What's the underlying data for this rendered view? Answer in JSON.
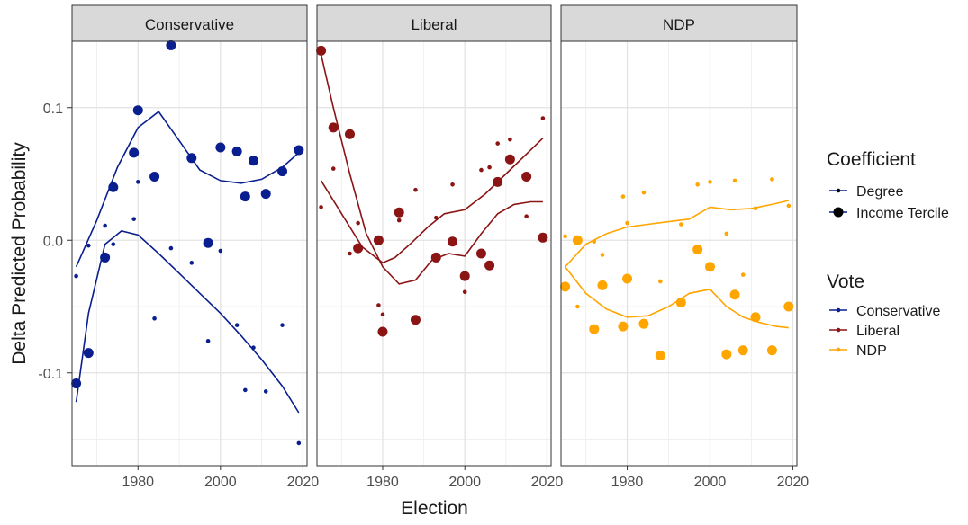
{
  "chart_data": {
    "type": "scatter",
    "xlabel": "Election",
    "ylabel": "Delta Predicted Probability",
    "xlim": [
      1964,
      2021
    ],
    "ylim": [
      -0.17,
      0.15
    ],
    "xticks": [
      1980,
      2000,
      2020
    ],
    "yticks": [
      -0.1,
      0.0,
      0.1
    ],
    "ytick_labels": [
      "-0.1",
      "0.0",
      "0.1"
    ],
    "grid": true,
    "colors": {
      "Conservative": "#0a1f8f",
      "Liberal": "#8b1414",
      "NDP": "#ffa500"
    },
    "legend": {
      "coefficient_title": "Coefficient",
      "coefficient_items": [
        "Degree",
        "Income Tercile"
      ],
      "vote_title": "Vote",
      "vote_items": [
        "Conservative",
        "Liberal",
        "NDP"
      ]
    },
    "facets": [
      {
        "name": "Conservative",
        "color": "#0a1f8f",
        "series": [
          {
            "name": "Degree",
            "points": [
              [
                1965,
                -0.027
              ],
              [
                1968,
                -0.004
              ],
              [
                1972,
                0.011
              ],
              [
                1974,
                -0.003
              ],
              [
                1979,
                0.016
              ],
              [
                1980,
                0.044
              ],
              [
                1984,
                -0.059
              ],
              [
                1988,
                -0.006
              ],
              [
                1993,
                -0.017
              ],
              [
                1997,
                -0.076
              ],
              [
                2000,
                -0.008
              ],
              [
                2004,
                -0.064
              ],
              [
                2006,
                -0.113
              ],
              [
                2008,
                -0.081
              ],
              [
                2011,
                -0.114
              ],
              [
                2015,
                -0.064
              ],
              [
                2019,
                -0.153
              ]
            ],
            "smooth": [
              [
                1965,
                -0.122
              ],
              [
                1968,
                -0.055
              ],
              [
                1972,
                -0.003
              ],
              [
                1976,
                0.007
              ],
              [
                1980,
                0.004
              ],
              [
                1985,
                -0.01
              ],
              [
                1990,
                -0.025
              ],
              [
                1995,
                -0.04
              ],
              [
                2000,
                -0.055
              ],
              [
                2005,
                -0.072
              ],
              [
                2010,
                -0.09
              ],
              [
                2015,
                -0.11
              ],
              [
                2019,
                -0.13
              ]
            ]
          },
          {
            "name": "Income Tercile",
            "points": [
              [
                1965,
                -0.108
              ],
              [
                1968,
                -0.085
              ],
              [
                1972,
                -0.013
              ],
              [
                1974,
                0.04
              ],
              [
                1979,
                0.066
              ],
              [
                1980,
                0.098
              ],
              [
                1984,
                0.048
              ],
              [
                1988,
                0.147
              ],
              [
                1993,
                0.062
              ],
              [
                1997,
                -0.002
              ],
              [
                2000,
                0.07
              ],
              [
                2004,
                0.067
              ],
              [
                2006,
                0.033
              ],
              [
                2008,
                0.06
              ],
              [
                2011,
                0.035
              ],
              [
                2015,
                0.052
              ],
              [
                2019,
                0.068
              ]
            ],
            "smooth": [
              [
                1965,
                -0.02
              ],
              [
                1970,
                0.015
              ],
              [
                1975,
                0.055
              ],
              [
                1980,
                0.085
              ],
              [
                1985,
                0.097
              ],
              [
                1990,
                0.075
              ],
              [
                1995,
                0.053
              ],
              [
                2000,
                0.045
              ],
              [
                2005,
                0.043
              ],
              [
                2010,
                0.046
              ],
              [
                2015,
                0.055
              ],
              [
                2019,
                0.066
              ]
            ]
          }
        ]
      },
      {
        "name": "Liberal",
        "color": "#8b1414",
        "series": [
          {
            "name": "Degree",
            "points": [
              [
                1965,
                0.025
              ],
              [
                1968,
                0.054
              ],
              [
                1972,
                -0.01
              ],
              [
                1974,
                0.013
              ],
              [
                1979,
                -0.049
              ],
              [
                1980,
                -0.056
              ],
              [
                1984,
                0.015
              ],
              [
                1988,
                0.038
              ],
              [
                1993,
                0.017
              ],
              [
                1997,
                0.042
              ],
              [
                2000,
                -0.039
              ],
              [
                2004,
                0.053
              ],
              [
                2006,
                0.055
              ],
              [
                2008,
                0.073
              ],
              [
                2011,
                0.076
              ],
              [
                2015,
                0.018
              ],
              [
                2019,
                0.092
              ]
            ],
            "smooth": [
              [
                1965,
                0.045
              ],
              [
                1970,
                0.02
              ],
              [
                1975,
                -0.005
              ],
              [
                1980,
                -0.017
              ],
              [
                1983,
                -0.013
              ],
              [
                1987,
                -0.002
              ],
              [
                1991,
                0.01
              ],
              [
                1995,
                0.02
              ],
              [
                2000,
                0.023
              ],
              [
                2005,
                0.035
              ],
              [
                2010,
                0.05
              ],
              [
                2015,
                0.065
              ],
              [
                2019,
                0.077
              ]
            ]
          },
          {
            "name": "Income Tercile",
            "points": [
              [
                1965,
                0.143
              ],
              [
                1968,
                0.085
              ],
              [
                1972,
                0.08
              ],
              [
                1974,
                -0.006
              ],
              [
                1979,
                0.0
              ],
              [
                1980,
                -0.069
              ],
              [
                1984,
                0.021
              ],
              [
                1988,
                -0.06
              ],
              [
                1993,
                -0.013
              ],
              [
                1997,
                -0.001
              ],
              [
                2000,
                -0.027
              ],
              [
                2004,
                -0.01
              ],
              [
                2006,
                -0.019
              ],
              [
                2008,
                0.044
              ],
              [
                2011,
                0.061
              ],
              [
                2015,
                0.048
              ],
              [
                2019,
                0.002
              ]
            ],
            "smooth": [
              [
                1965,
                0.14
              ],
              [
                1968,
                0.1
              ],
              [
                1972,
                0.05
              ],
              [
                1976,
                0.005
              ],
              [
                1980,
                -0.02
              ],
              [
                1984,
                -0.033
              ],
              [
                1988,
                -0.03
              ],
              [
                1992,
                -0.015
              ],
              [
                1996,
                -0.01
              ],
              [
                2000,
                -0.012
              ],
              [
                2004,
                0.005
              ],
              [
                2008,
                0.02
              ],
              [
                2012,
                0.027
              ],
              [
                2016,
                0.029
              ],
              [
                2019,
                0.029
              ]
            ]
          }
        ]
      },
      {
        "name": "NDP",
        "color": "#ffa500",
        "series": [
          {
            "name": "Degree",
            "points": [
              [
                1965,
                0.003
              ],
              [
                1968,
                -0.05
              ],
              [
                1972,
                -0.001
              ],
              [
                1974,
                -0.011
              ],
              [
                1979,
                0.033
              ],
              [
                1980,
                0.013
              ],
              [
                1984,
                0.036
              ],
              [
                1988,
                -0.031
              ],
              [
                1993,
                0.012
              ],
              [
                1997,
                0.042
              ],
              [
                2000,
                0.044
              ],
              [
                2004,
                0.005
              ],
              [
                2006,
                0.045
              ],
              [
                2008,
                -0.026
              ],
              [
                2011,
                0.024
              ],
              [
                2015,
                0.046
              ],
              [
                2019,
                0.026
              ]
            ],
            "smooth": [
              [
                1965,
                -0.02
              ],
              [
                1970,
                -0.003
              ],
              [
                1975,
                0.005
              ],
              [
                1980,
                0.01
              ],
              [
                1985,
                0.012
              ],
              [
                1990,
                0.014
              ],
              [
                1995,
                0.016
              ],
              [
                2000,
                0.025
              ],
              [
                2005,
                0.023
              ],
              [
                2010,
                0.024
              ],
              [
                2015,
                0.027
              ],
              [
                2019,
                0.03
              ]
            ]
          },
          {
            "name": "Income Tercile",
            "points": [
              [
                1965,
                -0.035
              ],
              [
                1968,
                0.0
              ],
              [
                1972,
                -0.067
              ],
              [
                1974,
                -0.034
              ],
              [
                1979,
                -0.065
              ],
              [
                1980,
                -0.029
              ],
              [
                1984,
                -0.063
              ],
              [
                1988,
                -0.087
              ],
              [
                1993,
                -0.047
              ],
              [
                1997,
                -0.007
              ],
              [
                2000,
                -0.02
              ],
              [
                2004,
                -0.086
              ],
              [
                2006,
                -0.041
              ],
              [
                2008,
                -0.083
              ],
              [
                2011,
                -0.058
              ],
              [
                2015,
                -0.083
              ],
              [
                2019,
                -0.05
              ]
            ],
            "smooth": [
              [
                1965,
                -0.02
              ],
              [
                1970,
                -0.04
              ],
              [
                1975,
                -0.052
              ],
              [
                1980,
                -0.058
              ],
              [
                1985,
                -0.057
              ],
              [
                1990,
                -0.05
              ],
              [
                1995,
                -0.04
              ],
              [
                2000,
                -0.037
              ],
              [
                2004,
                -0.05
              ],
              [
                2008,
                -0.058
              ],
              [
                2012,
                -0.062
              ],
              [
                2016,
                -0.065
              ],
              [
                2019,
                -0.066
              ]
            ]
          }
        ]
      }
    ]
  }
}
